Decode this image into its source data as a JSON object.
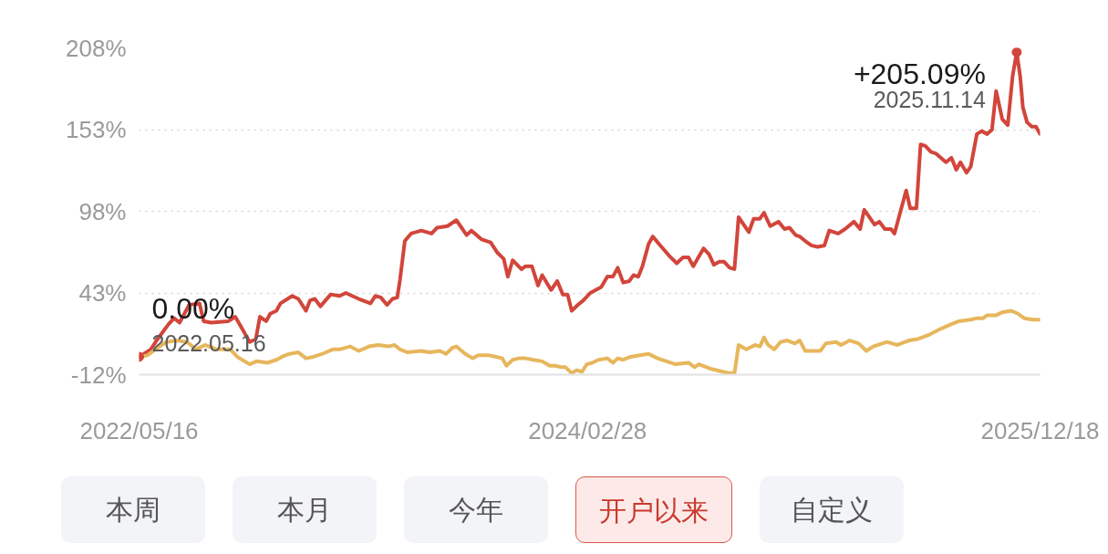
{
  "chart_data": {
    "type": "line",
    "series": [
      {
        "color": "#d2453b",
        "x": [
          "2022-05-16",
          "2022-06-02",
          "2022-06-12",
          "2022-06-28",
          "2022-07-06",
          "2022-07-14",
          "2022-07-28",
          "2022-08-12",
          "2022-08-18",
          "2022-08-29",
          "2022-09-23",
          "2022-10-03",
          "2022-10-13",
          "2022-10-24",
          "2022-11-02",
          "2022-11-08",
          "2022-11-17",
          "2022-11-23",
          "2022-12-02",
          "2022-12-08",
          "2022-12-25",
          "2023-01-03",
          "2023-01-14",
          "2023-01-20",
          "2023-01-27",
          "2023-02-04",
          "2023-02-19",
          "2023-03-04",
          "2023-03-13",
          "2023-04-01",
          "2023-04-18",
          "2023-04-25",
          "2023-05-03",
          "2023-05-12",
          "2023-05-20",
          "2023-05-27",
          "2023-05-31",
          "2023-06-07",
          "2023-06-16",
          "2023-07-01",
          "2023-07-16",
          "2023-07-24",
          "2023-08-08",
          "2023-08-21",
          "2023-09-05",
          "2023-09-12",
          "2023-09-27",
          "2023-10-10",
          "2023-10-20",
          "2023-10-29",
          "2023-11-04",
          "2023-11-11",
          "2023-11-24",
          "2023-11-30",
          "2023-12-09",
          "2023-12-18",
          "2023-12-24",
          "2024-01-06",
          "2024-01-15",
          "2024-01-23",
          "2024-01-30",
          "2024-02-05",
          "2024-02-14",
          "2024-02-22",
          "2024-03-03",
          "2024-03-19",
          "2024-03-28",
          "2024-04-05",
          "2024-04-12",
          "2024-04-20",
          "2024-04-29",
          "2024-05-05",
          "2024-05-12",
          "2024-05-18",
          "2024-05-27",
          "2024-06-02",
          "2024-06-13",
          "2024-06-26",
          "2024-07-07",
          "2024-07-16",
          "2024-07-24",
          "2024-07-31",
          "2024-08-15",
          "2024-08-23",
          "2024-08-30",
          "2024-09-07",
          "2024-09-14",
          "2024-09-22",
          "2024-09-29",
          "2024-10-05",
          "2024-10-20",
          "2024-10-27",
          "2024-11-05",
          "2024-11-11",
          "2024-11-20",
          "2024-12-02",
          "2024-12-11",
          "2024-12-18",
          "2024-12-27",
          "2025-01-02",
          "2025-01-10",
          "2025-01-19",
          "2025-01-28",
          "2025-02-07",
          "2025-02-14",
          "2025-02-27",
          "2025-03-09",
          "2025-03-22",
          "2025-03-31",
          "2025-04-06",
          "2025-04-21",
          "2025-04-28",
          "2025-05-06",
          "2025-05-15",
          "2025-05-20",
          "2025-06-06",
          "2025-06-12",
          "2025-06-21",
          "2025-06-27",
          "2025-07-04",
          "2025-07-12",
          "2025-07-19",
          "2025-08-03",
          "2025-08-11",
          "2025-08-18",
          "2025-08-24",
          "2025-09-02",
          "2025-09-08",
          "2025-09-17",
          "2025-09-24",
          "2025-10-02",
          "2025-10-09",
          "2025-10-15",
          "2025-10-24",
          "2025-11-01",
          "2025-11-08",
          "2025-11-14",
          "2025-11-19",
          "2025-11-23",
          "2025-11-29",
          "2025-12-06",
          "2025-12-12",
          "2025-12-18"
        ],
        "values": [
          0,
          5,
          12,
          22,
          26,
          23,
          35,
          36,
          24,
          23,
          24,
          27,
          19,
          10,
          12,
          27,
          24,
          29,
          31,
          36,
          41,
          39,
          31,
          38,
          39,
          34,
          42,
          41,
          43,
          39,
          36,
          41,
          40,
          35,
          39,
          40,
          52,
          78,
          83,
          85,
          83,
          87,
          88,
          92,
          82,
          85,
          79,
          77,
          70,
          66,
          54,
          65,
          59,
          61,
          61,
          48,
          55,
          45,
          51,
          42,
          42,
          31,
          35,
          38,
          43,
          47,
          54,
          54,
          60,
          50,
          51,
          55,
          54,
          61,
          76,
          81,
          75,
          68,
          63,
          67,
          67,
          61,
          73,
          69,
          62,
          64,
          64,
          60,
          59,
          94,
          84,
          93,
          93,
          97,
          88,
          91,
          86,
          87,
          82,
          81,
          78,
          75,
          74,
          75,
          85,
          83,
          86,
          91,
          86,
          99,
          89,
          91,
          86,
          86,
          83,
          112,
          100,
          100,
          143,
          142,
          138,
          137,
          131,
          134,
          126,
          131,
          124,
          128,
          150,
          152,
          150,
          153,
          179,
          160,
          156,
          189,
          205.09,
          189,
          168,
          158,
          155,
          155,
          150
        ]
      },
      {
        "color": "#e7b65c",
        "x": [
          "2022-05-16",
          "2022-05-28",
          "2022-06-12",
          "2022-06-25",
          "2022-07-10",
          "2022-07-25",
          "2022-08-07",
          "2022-08-20",
          "2022-09-06",
          "2022-09-26",
          "2022-10-06",
          "2022-10-24",
          "2022-11-03",
          "2022-11-19",
          "2022-12-02",
          "2022-12-10",
          "2022-12-21",
          "2023-01-03",
          "2023-01-14",
          "2023-01-25",
          "2023-02-07",
          "2023-02-22",
          "2023-03-04",
          "2023-03-19",
          "2023-04-01",
          "2023-04-16",
          "2023-04-29",
          "2023-05-14",
          "2023-05-23",
          "2023-05-31",
          "2023-06-11",
          "2023-07-01",
          "2023-07-13",
          "2023-07-28",
          "2023-08-06",
          "2023-08-15",
          "2023-08-21",
          "2023-09-03",
          "2023-09-14",
          "2023-09-22",
          "2023-10-08",
          "2023-10-18",
          "2023-10-27",
          "2023-11-02",
          "2023-11-11",
          "2023-11-20",
          "2023-11-30",
          "2023-12-11",
          "2023-12-24",
          "2024-01-04",
          "2024-01-12",
          "2024-01-21",
          "2024-01-27",
          "2024-02-05",
          "2024-02-12",
          "2024-02-20",
          "2024-02-27",
          "2024-03-06",
          "2024-03-15",
          "2024-03-28",
          "2024-04-05",
          "2024-04-12",
          "2024-04-20",
          "2024-05-01",
          "2024-05-14",
          "2024-05-27",
          "2024-06-09",
          "2024-06-22",
          "2024-07-05",
          "2024-07-24",
          "2024-08-02",
          "2024-08-08",
          "2024-08-25",
          "2024-09-12",
          "2024-09-22",
          "2024-09-29",
          "2024-10-05",
          "2024-10-16",
          "2024-10-29",
          "2024-11-05",
          "2024-11-11",
          "2024-11-17",
          "2024-11-26",
          "2024-12-05",
          "2024-12-15",
          "2024-12-26",
          "2025-01-02",
          "2025-01-10",
          "2025-02-01",
          "2025-02-09",
          "2025-02-24",
          "2025-03-03",
          "2025-03-16",
          "2025-03-29",
          "2025-04-09",
          "2025-04-19",
          "2025-05-09",
          "2025-05-24",
          "2025-06-10",
          "2025-06-23",
          "2025-07-10",
          "2025-07-27",
          "2025-08-11",
          "2025-08-22",
          "2025-09-08",
          "2025-09-17",
          "2025-09-26",
          "2025-10-02",
          "2025-10-15",
          "2025-10-24",
          "2025-11-06",
          "2025-11-16",
          "2025-11-25",
          "2025-12-08",
          "2025-12-18"
        ],
        "values": [
          0,
          1,
          6,
          10,
          11,
          10,
          5,
          8,
          5,
          5,
          0,
          -5,
          -3,
          -4,
          -2,
          0,
          2,
          3,
          -1,
          0,
          2,
          5,
          5,
          7,
          4,
          7,
          8,
          7,
          8,
          5,
          3,
          4,
          3,
          4,
          2,
          6,
          7,
          2,
          -1,
          1,
          1,
          0,
          -1,
          -6,
          -2,
          -1,
          -1,
          -2,
          -3,
          -6,
          -6,
          -7,
          -7,
          -11,
          -9,
          -10,
          -5,
          -4,
          -2,
          -1,
          -4,
          -1,
          -2,
          0,
          1,
          2,
          -1,
          -3,
          -5,
          -4,
          -7,
          -5,
          -8,
          -10,
          -11,
          -11,
          8,
          5,
          8,
          7,
          13,
          8,
          5,
          10,
          11,
          9,
          11,
          4,
          4,
          9,
          10,
          8,
          11,
          9,
          4,
          7,
          10,
          8,
          11,
          12,
          15,
          19,
          22,
          24,
          25,
          26,
          26,
          28,
          28,
          30,
          31,
          29,
          26,
          25,
          25
        ]
      }
    ],
    "xlim": [
      "2022-05-16",
      "2025-12-18"
    ],
    "xticks": [
      {
        "value": "2022-05-16",
        "label": "2022/05/16"
      },
      {
        "value": "2024-02-28",
        "label": "2024/02/28"
      },
      {
        "value": "2025-12-18",
        "label": "2025/12/18"
      }
    ],
    "ylim": [
      -12,
      208
    ],
    "yticks": [
      {
        "value": -12,
        "label": "-12%"
      },
      {
        "value": 43,
        "label": "43%"
      },
      {
        "value": 98,
        "label": "98%"
      },
      {
        "value": 153,
        "label": "153%"
      },
      {
        "value": 208,
        "label": "208%"
      }
    ],
    "grid": "y",
    "line_style": "solid",
    "annotations": [
      {
        "text": "+205.09%",
        "x": "2025-11-14",
        "y": 205.09
      },
      {
        "text": "2025.11.14",
        "x": "2025-11-14",
        "y": 205.09
      },
      {
        "text": "0.00%",
        "x": "2022-05-16",
        "y": 0
      },
      {
        "text": "2022.05.16",
        "x": "2022-05-16",
        "y": 0
      },
      "本周",
      "本月",
      "今年",
      "开户以来",
      "自定义"
    ]
  }
}
